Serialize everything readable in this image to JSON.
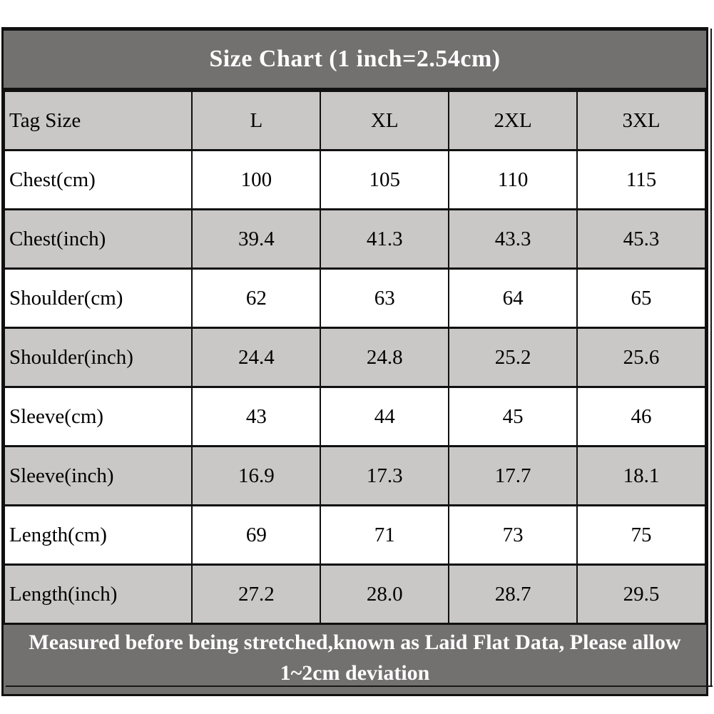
{
  "title": "Size Chart (1 inch=2.54cm)",
  "table": {
    "header": [
      "Tag Size",
      "L",
      "XL",
      "2XL",
      "3XL"
    ],
    "rows": [
      {
        "label": "Chest(cm)",
        "values": [
          "100",
          "105",
          "110",
          "115"
        ]
      },
      {
        "label": "Chest(inch)",
        "values": [
          "39.4",
          "41.3",
          "43.3",
          "45.3"
        ]
      },
      {
        "label": "Shoulder(cm)",
        "values": [
          "62",
          "63",
          "64",
          "65"
        ]
      },
      {
        "label": "Shoulder(inch)",
        "values": [
          "24.4",
          "24.8",
          "25.2",
          "25.6"
        ]
      },
      {
        "label": "Sleeve(cm)",
        "values": [
          "43",
          "44",
          "45",
          "46"
        ]
      },
      {
        "label": "Sleeve(inch)",
        "values": [
          "16.9",
          "17.3",
          "17.7",
          "18.1"
        ]
      },
      {
        "label": "Length(cm)",
        "values": [
          "69",
          "71",
          "73",
          "75"
        ]
      },
      {
        "label": "Length(inch)",
        "values": [
          "27.2",
          "28.0",
          "28.7",
          "29.5"
        ]
      }
    ]
  },
  "footer": "Measured before being stretched,known as Laid Flat Data, Please allow 1~2cm deviation",
  "colors": {
    "title_bg": "#737070",
    "footer_bg": "#737070",
    "alt_row_bg": "#cac7c7",
    "row_bg": "#ffffff",
    "border": "#101010",
    "title_text": "#ffffff",
    "body_text": "#000000"
  },
  "chart_data": {
    "type": "table",
    "title": "Size Chart (1 inch=2.54cm)",
    "columns": [
      "Tag Size",
      "L",
      "XL",
      "2XL",
      "3XL"
    ],
    "rows": [
      [
        "Chest(cm)",
        100,
        105,
        110,
        115
      ],
      [
        "Chest(inch)",
        39.4,
        41.3,
        43.3,
        45.3
      ],
      [
        "Shoulder(cm)",
        62,
        63,
        64,
        65
      ],
      [
        "Shoulder(inch)",
        24.4,
        24.8,
        25.2,
        25.6
      ],
      [
        "Sleeve(cm)",
        43,
        44,
        45,
        46
      ],
      [
        "Sleeve(inch)",
        16.9,
        17.3,
        17.7,
        18.1
      ],
      [
        "Length(cm)",
        69,
        71,
        73,
        75
      ],
      [
        "Length(inch)",
        27.2,
        28.0,
        28.7,
        29.5
      ]
    ],
    "footnote": "Measured before being stretched,known as Laid Flat Data, Please allow 1~2cm deviation"
  }
}
